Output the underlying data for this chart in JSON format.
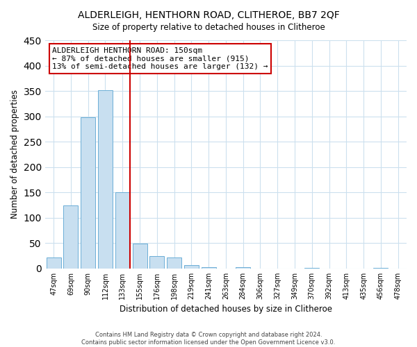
{
  "title": "ALDERLEIGH, HENTHORN ROAD, CLITHEROE, BB7 2QF",
  "subtitle": "Size of property relative to detached houses in Clitheroe",
  "xlabel": "Distribution of detached houses by size in Clitheroe",
  "ylabel": "Number of detached properties",
  "bar_labels": [
    "47sqm",
    "69sqm",
    "90sqm",
    "112sqm",
    "133sqm",
    "155sqm",
    "176sqm",
    "198sqm",
    "219sqm",
    "241sqm",
    "263sqm",
    "284sqm",
    "306sqm",
    "327sqm",
    "349sqm",
    "370sqm",
    "392sqm",
    "413sqm",
    "435sqm",
    "456sqm",
    "478sqm"
  ],
  "bar_values": [
    22,
    124,
    298,
    352,
    151,
    49,
    24,
    22,
    7,
    2,
    0,
    2,
    0,
    0,
    0,
    1,
    0,
    0,
    0,
    1,
    0
  ],
  "bar_color": "#c8dff0",
  "bar_edge_color": "#6baed6",
  "vline_color": "#cc0000",
  "annotation_text": "ALDERLEIGH HENTHORN ROAD: 150sqm\n← 87% of detached houses are smaller (915)\n13% of semi-detached houses are larger (132) →",
  "annotation_box_color": "white",
  "annotation_box_edge_color": "#cc0000",
  "ylim": [
    0,
    450
  ],
  "yticks": [
    0,
    50,
    100,
    150,
    200,
    250,
    300,
    350,
    400,
    450
  ],
  "footer_line1": "Contains HM Land Registry data © Crown copyright and database right 2024.",
  "footer_line2": "Contains public sector information licensed under the Open Government Licence v3.0.",
  "background_color": "#ffffff",
  "grid_color": "#cce0ee"
}
